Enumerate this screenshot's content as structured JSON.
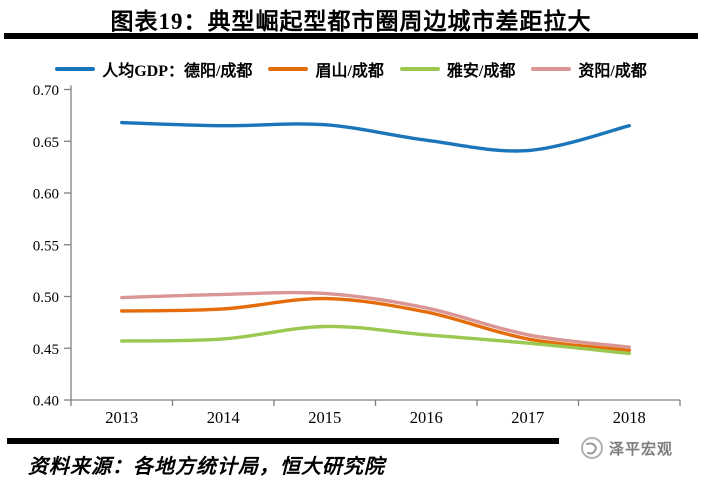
{
  "title": "图表19：典型崛起型都市圈周边城市差距拉大",
  "source": "资料来源：各地方统计局，恒大研究院",
  "watermark": {
    "label": "泽平宏观",
    "icon": "swirl-circle-icon"
  },
  "chart_data": {
    "type": "line",
    "title": "图表19：典型崛起型都市圈周边城市差距拉大",
    "categories": [
      "2013",
      "2014",
      "2015",
      "2016",
      "2017",
      "2018"
    ],
    "series": [
      {
        "name": "人均GDP：德阳/成都",
        "color": "#1B75BA",
        "values": [
          0.668,
          0.665,
          0.666,
          0.651,
          0.641,
          0.665
        ]
      },
      {
        "name": "眉山/成都",
        "color": "#E56C0A",
        "values": [
          0.486,
          0.488,
          0.498,
          0.485,
          0.459,
          0.448
        ]
      },
      {
        "name": "雅安/成都",
        "color": "#9AC850",
        "values": [
          0.457,
          0.459,
          0.471,
          0.463,
          0.455,
          0.445
        ]
      },
      {
        "name": "资阳/成都",
        "color": "#D99694",
        "values": [
          0.499,
          0.502,
          0.503,
          0.489,
          0.463,
          0.451
        ]
      }
    ],
    "ylim": [
      0.4,
      0.7
    ],
    "ytick_step": 0.05,
    "ytick_labels": [
      "0.70",
      "0.65",
      "0.60",
      "0.55",
      "0.50",
      "0.45",
      "0.40"
    ],
    "xlabel": "",
    "ylabel": "",
    "grid": false,
    "smooth": true,
    "legend_position": "top",
    "axis_color": "#7F7F7F",
    "tick_label_color": "#000000"
  }
}
